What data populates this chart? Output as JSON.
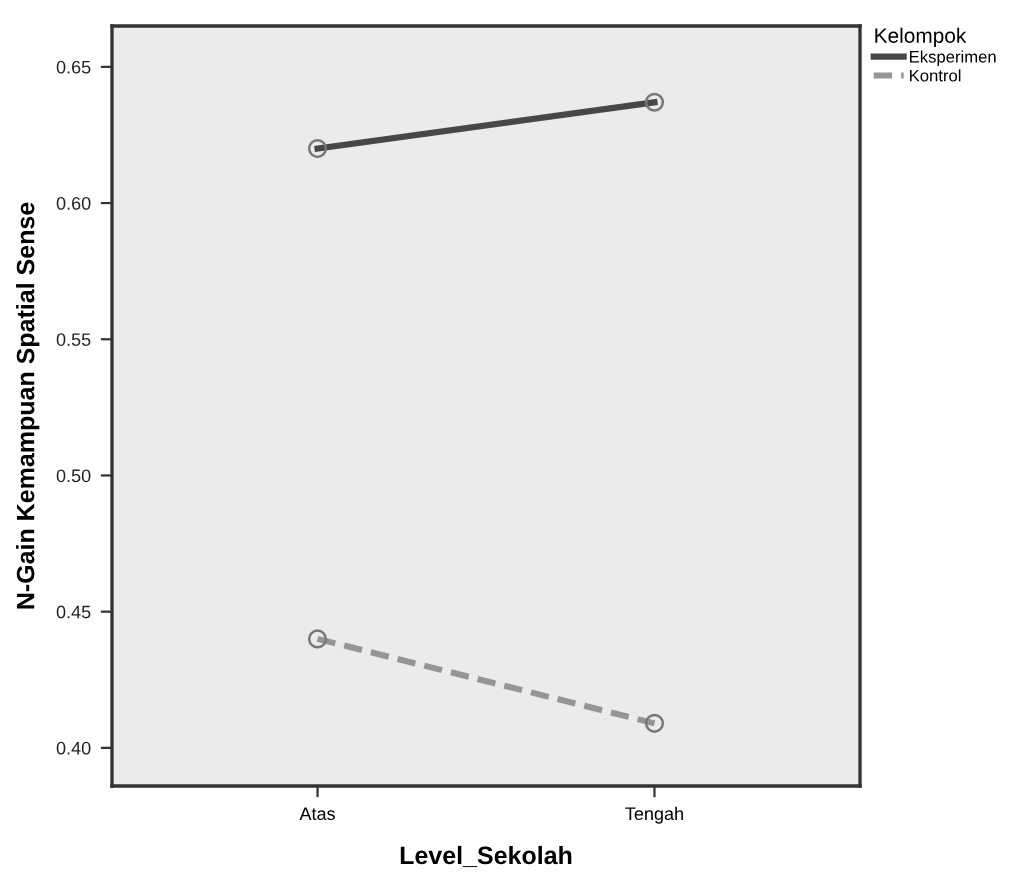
{
  "chart_data": {
    "type": "line",
    "xlabel": "Level_Sekolah",
    "ylabel": "N-Gain Kemampuan Spatial Sense",
    "legend_title": "Kelompok",
    "categories": [
      "Atas",
      "Tengah"
    ],
    "series": [
      {
        "name": "Eksperimen",
        "color": "#474747",
        "values": [
          0.62,
          0.637
        ],
        "line_style": "solid"
      },
      {
        "name": "Kontrol",
        "color": "#959595",
        "values": [
          0.44,
          0.409
        ],
        "line_style": "dashed"
      }
    ],
    "ylim": [
      0.386,
      0.665
    ],
    "yticks": [
      {
        "value": 0.4,
        "label": "0.40"
      },
      {
        "value": 0.45,
        "label": "0.45"
      },
      {
        "value": 0.5,
        "label": "0.50"
      },
      {
        "value": 0.55,
        "label": "0.55"
      },
      {
        "value": 0.6,
        "label": "0.60"
      },
      {
        "value": 0.65,
        "label": "0.65"
      }
    ],
    "marker": "circle",
    "grid": false,
    "legend": "top right"
  }
}
